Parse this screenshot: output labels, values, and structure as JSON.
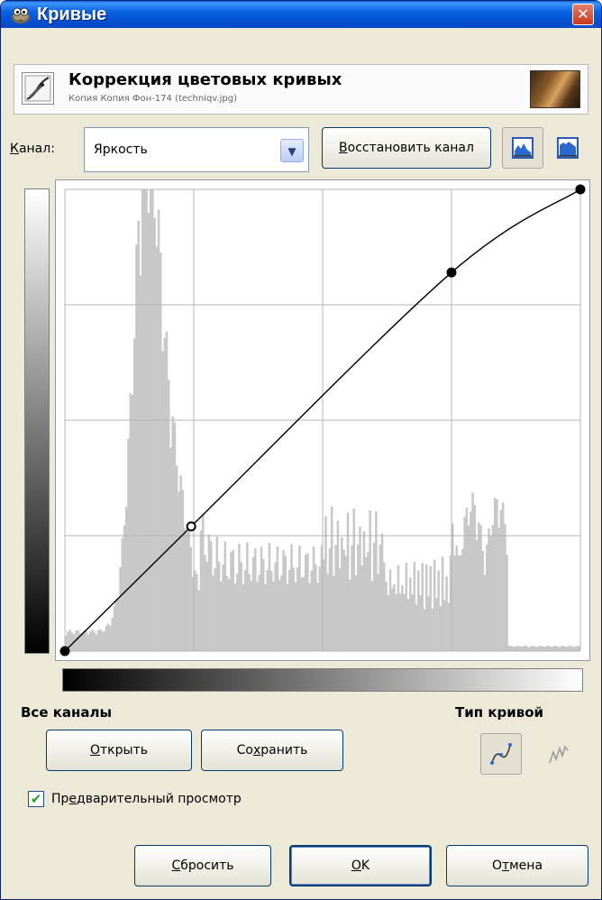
{
  "window": {
    "title": "Кривые",
    "close_icon": "close-icon",
    "app_icon": "gimp-wilber-icon"
  },
  "header": {
    "title": "Коррекция цветовых кривых",
    "subtitle": "Копия Копия Фон-174 (techniqv.jpg)",
    "icon": "curves-tool-icon"
  },
  "channel": {
    "label": "Канал:",
    "label_prefix": "К",
    "label_rest": "анал:",
    "value": "Яркость",
    "reset_label_prefix": "В",
    "reset_label_rest": "осстановить канал"
  },
  "histogram_toggles": [
    "linear-histogram-icon",
    "log-histogram-icon"
  ],
  "curve": {
    "control_points": [
      [
        0,
        0
      ],
      [
        0.245,
        0.27
      ],
      [
        0.75,
        0.82
      ],
      [
        1.0,
        1.0
      ]
    ],
    "selected_point_index": 1,
    "histogram_color": "#c8c8c8",
    "grid_color": "#b4b4b4"
  },
  "all_channels": {
    "label": "Все каналы",
    "open_prefix": "О",
    "open_rest": "ткрыть",
    "save_prefix": "Со",
    "save_underlined": "х",
    "save_rest": "ранить"
  },
  "curve_type": {
    "label": "Тип кривой",
    "options": [
      "smooth-curve-icon",
      "freehand-curve-icon"
    ]
  },
  "preview": {
    "checked": true,
    "label_prefix": "Пр",
    "label_underlined": "е",
    "label_rest": "дварительный просмотр"
  },
  "buttons": {
    "reset_prefix": "С",
    "reset_rest": "бросить",
    "ok_underlined": "О",
    "ok_rest": "K",
    "cancel_prefix": "О",
    "cancel_underlined": "т",
    "cancel_rest": "мена"
  }
}
